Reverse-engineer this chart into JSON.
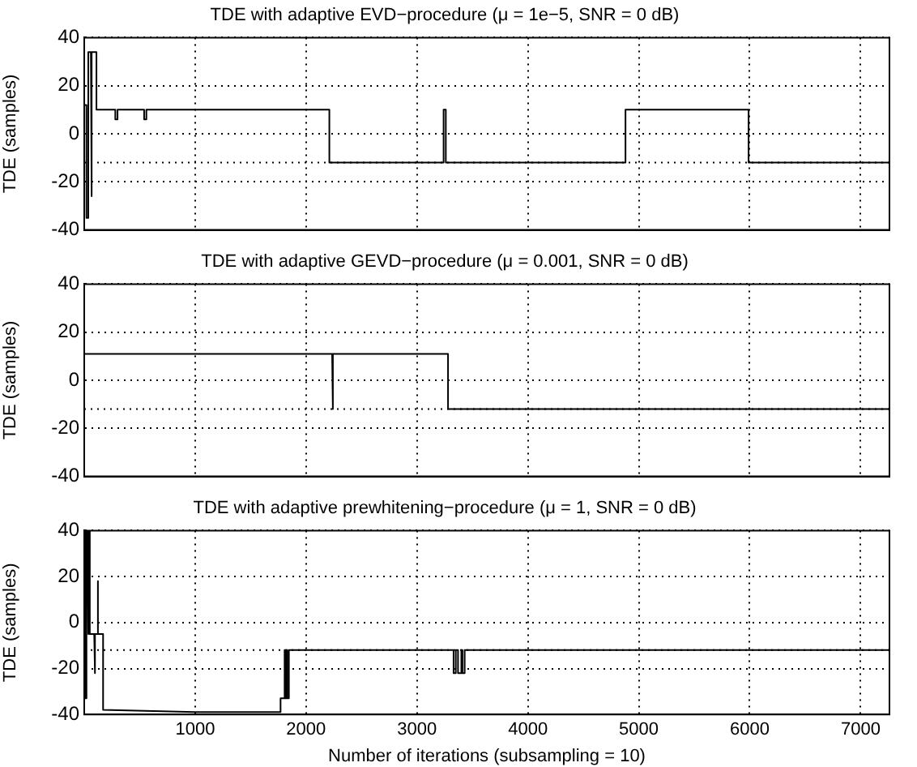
{
  "chart_data": [
    {
      "type": "line",
      "title": "TDE with adaptive EVD−procedure (μ = 1e−5, SNR = 0 dB)",
      "ylabel": "TDE (samples)",
      "color": "#000000",
      "xlim": [
        0,
        7260
      ],
      "xticks": [
        1000,
        2000,
        3000,
        4000,
        5000,
        6000,
        7000
      ],
      "ylim": [
        -40,
        40
      ],
      "yticks": [
        -40,
        -20,
        0,
        20,
        40
      ],
      "grid": true,
      "tick_labels": "y",
      "ref_lines": [
        {
          "axis": "y",
          "value": -12,
          "line_style": "dotted",
          "color": "#000000"
        }
      ],
      "x": [
        0,
        20,
        20,
        30,
        30,
        40,
        40,
        60,
        60,
        70,
        70,
        110,
        110,
        280,
        280,
        300,
        300,
        540,
        540,
        560,
        560,
        2210,
        2210,
        3240,
        3240,
        3260,
        3260,
        4880,
        4880,
        5990,
        5990,
        7260
      ],
      "values": [
        12,
        12,
        -35,
        -35,
        12,
        12,
        34,
        34,
        -26,
        -26,
        34,
        34,
        10,
        10,
        6,
        6,
        10,
        10,
        6,
        6,
        10,
        10,
        -12,
        -12,
        10,
        10,
        -12,
        -12,
        10,
        10,
        -12,
        -12
      ]
    },
    {
      "type": "line",
      "title": "TDE with adaptive GEVD−procedure (μ = 0.001, SNR = 0 dB)",
      "ylabel": "TDE (samples)",
      "color": "#000000",
      "xlim": [
        0,
        7260
      ],
      "xticks": [
        1000,
        2000,
        3000,
        4000,
        5000,
        6000,
        7000
      ],
      "ylim": [
        -40,
        40
      ],
      "yticks": [
        -40,
        -20,
        0,
        20,
        40
      ],
      "grid": true,
      "tick_labels": "y",
      "ref_lines": [
        {
          "axis": "y",
          "value": -12,
          "line_style": "dotted",
          "color": "#000000"
        }
      ],
      "x": [
        0,
        2235,
        2235,
        2245,
        2245,
        3280,
        3280,
        7260
      ],
      "values": [
        11,
        11,
        -12,
        -12,
        11,
        11,
        -12,
        -12
      ]
    },
    {
      "type": "line",
      "title": "TDE with adaptive prewhitening−procedure (μ = 1, SNR = 0 dB)",
      "xlabel": "Number of iterations (subsampling = 10)",
      "ylabel": "TDE (samples)",
      "color": "#000000",
      "xlim": [
        0,
        7260
      ],
      "xticks": [
        1000,
        2000,
        3000,
        4000,
        5000,
        6000,
        7000
      ],
      "ylim": [
        -40,
        40
      ],
      "yticks": [
        -40,
        -20,
        0,
        20,
        40
      ],
      "grid": true,
      "ref_lines": [
        {
          "axis": "y",
          "value": -12,
          "line_style": "dotted",
          "color": "#000000"
        }
      ],
      "x": [
        0,
        10,
        10,
        20,
        20,
        30,
        30,
        40,
        40,
        50,
        50,
        90,
        90,
        100,
        100,
        120,
        120,
        125,
        125,
        170,
        170,
        1000,
        1770,
        1770,
        1800,
        1800,
        1810,
        1810,
        1820,
        1820,
        1830,
        1830,
        1845,
        1845,
        3330,
        3330,
        3350,
        3350,
        3370,
        3370,
        3400,
        3400,
        3410,
        3410,
        3430,
        3430,
        7260
      ],
      "values": [
        40,
        40,
        -33,
        -33,
        40,
        40,
        -5,
        -5,
        40,
        40,
        -5,
        -5,
        -22,
        -22,
        -5,
        -5,
        18,
        18,
        -5,
        -5,
        -38,
        -39,
        -39,
        -33,
        -33,
        -12,
        -12,
        -33,
        -33,
        -12,
        -12,
        -33,
        -33,
        -12,
        -12,
        -22,
        -22,
        -12,
        -12,
        -22,
        -22,
        -12,
        -12,
        -22,
        -22,
        -12,
        -12
      ]
    }
  ]
}
